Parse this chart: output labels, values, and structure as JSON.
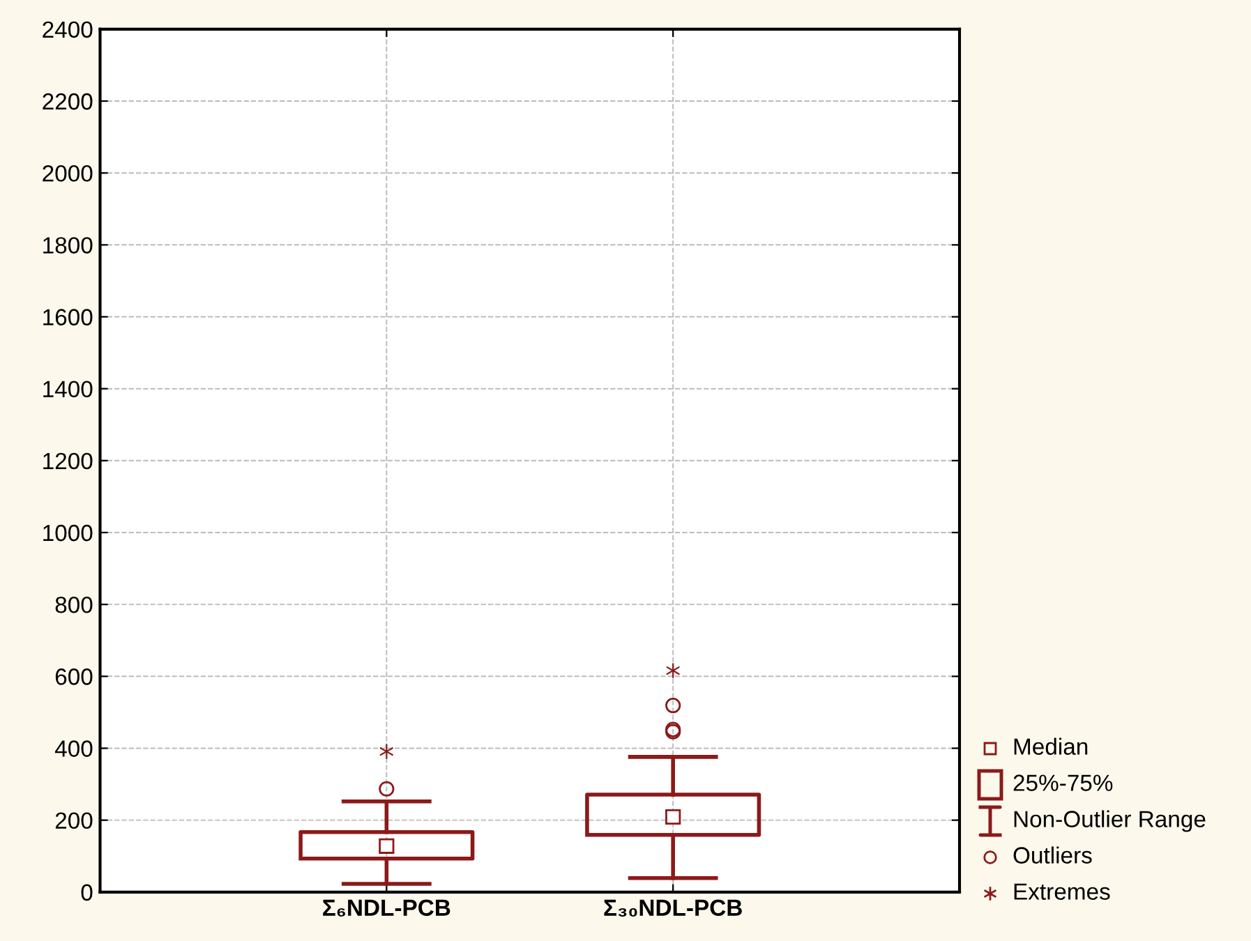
{
  "chart_data": {
    "type": "box",
    "categories": [
      "Σ₆NDL-PCB",
      "Σ₃₀NDL-PCB"
    ],
    "series": [
      {
        "color": "#8b1a1a",
        "boxes": [
          {
            "low": 23,
            "q1": 93,
            "median": 128,
            "q3": 167,
            "high": 252,
            "outliers": [
              287
            ]
          },
          {
            "low": 39,
            "q1": 159,
            "median": 209,
            "q3": 271,
            "high": 376,
            "outliers": [
              446,
              452,
              519
            ]
          }
        ]
      },
      {
        "type": "scatter",
        "color": "#8b1a1a",
        "x": [
          "Σ₆NDL-PCB",
          "Σ₃₀NDL-PCB"
        ],
        "values": [
          391,
          616
        ]
      }
    ],
    "annotations": [
      "Median",
      "25%-75%",
      "Non-Outlier Range",
      "Outliers",
      "Extremes"
    ],
    "ylim": [
      0,
      2400
    ],
    "yticks": [
      0,
      200,
      400,
      600,
      800,
      1000,
      1200,
      1400,
      1600,
      1800,
      2000,
      2200,
      2400
    ],
    "grid": true
  }
}
